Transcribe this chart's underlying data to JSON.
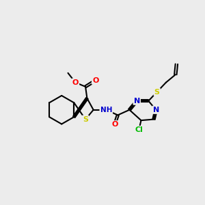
{
  "background_color": "#ececec",
  "bond_color": "#000000",
  "atom_colors": {
    "O": "#ff0000",
    "N": "#0000cd",
    "S": "#cccc00",
    "Cl": "#00bb00",
    "H": "#888888",
    "C": "#000000"
  },
  "figsize": [
    3.0,
    3.0
  ],
  "dpi": 100
}
